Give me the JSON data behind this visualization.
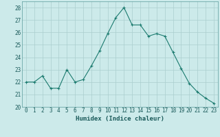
{
  "x": [
    0,
    1,
    2,
    3,
    4,
    5,
    6,
    7,
    8,
    9,
    10,
    11,
    12,
    13,
    14,
    15,
    16,
    17,
    18,
    19,
    20,
    21,
    22,
    23
  ],
  "y": [
    22.0,
    22.0,
    22.5,
    21.5,
    21.5,
    23.0,
    22.0,
    22.2,
    23.3,
    24.5,
    25.9,
    27.2,
    28.0,
    26.6,
    26.6,
    25.7,
    25.9,
    25.7,
    24.4,
    23.1,
    21.9,
    21.2,
    20.7,
    20.3
  ],
  "xlabel": "Humidex (Indice chaleur)",
  "ylim": [
    20,
    28.5
  ],
  "yticks": [
    20,
    21,
    22,
    23,
    24,
    25,
    26,
    27,
    28
  ],
  "xticks": [
    0,
    1,
    2,
    3,
    4,
    5,
    6,
    7,
    8,
    9,
    10,
    11,
    12,
    13,
    14,
    15,
    16,
    17,
    18,
    19,
    20,
    21,
    22,
    23
  ],
  "line_color": "#1a7a6e",
  "marker_color": "#1a7a6e",
  "bg_color": "#cceaea",
  "grid_color": "#aacece",
  "axis_label_fontsize": 6.5,
  "tick_fontsize": 5.5
}
